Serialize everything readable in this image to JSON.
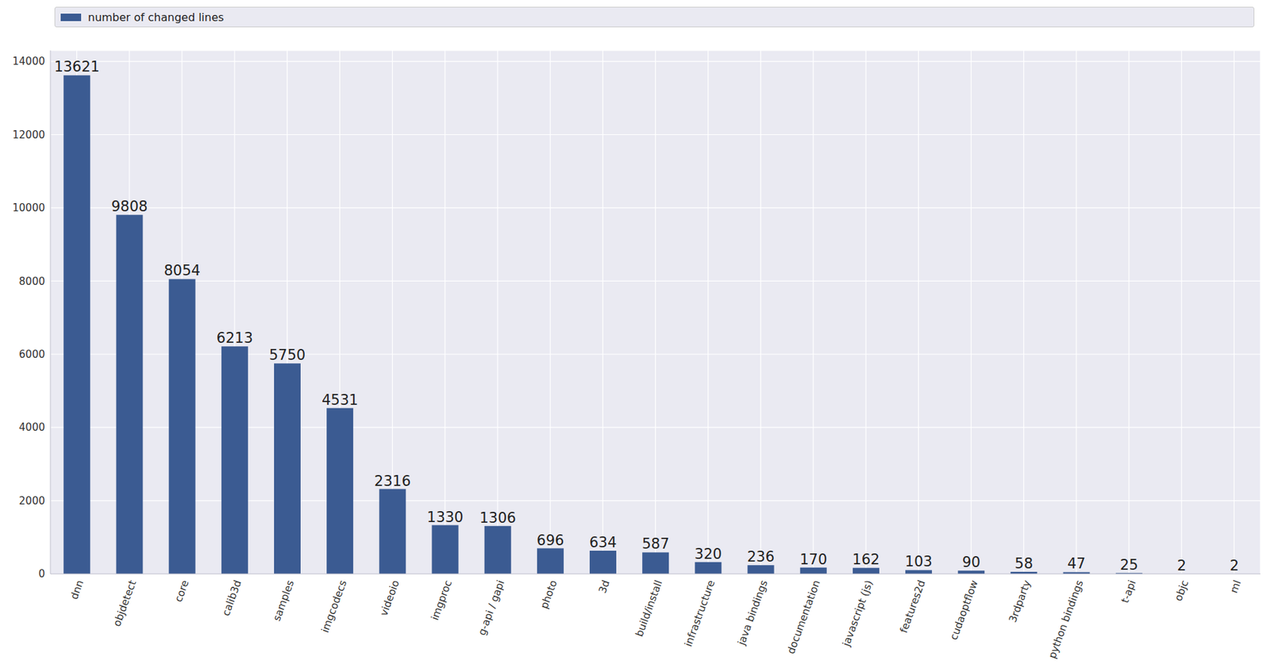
{
  "chart_data": {
    "type": "bar",
    "categories": [
      "dnn",
      "objdetect",
      "core",
      "calib3d",
      "samples",
      "imgcodecs",
      "videoio",
      "imgproc",
      "g-api / gapi",
      "photo",
      "3d",
      "build/install",
      "infrastructure",
      "java bindings",
      "documentation",
      "javascript (js)",
      "features2d",
      "cudaoptflow",
      "3rdparty",
      "python bindings",
      "t-api",
      "objc",
      "ml"
    ],
    "series": [
      {
        "name": "number of changed lines",
        "color": "#3b5b92",
        "values": [
          13621,
          9808,
          8054,
          6213,
          5750,
          4531,
          2316,
          1330,
          1306,
          696,
          634,
          587,
          320,
          236,
          170,
          162,
          103,
          90,
          58,
          47,
          25,
          2,
          2
        ]
      }
    ],
    "ylim": [
      0,
      14300
    ],
    "yticks": [
      0,
      2000,
      4000,
      6000,
      8000,
      10000,
      12000,
      14000
    ],
    "grid": true,
    "legend": "upper left",
    "data_labels": true
  }
}
